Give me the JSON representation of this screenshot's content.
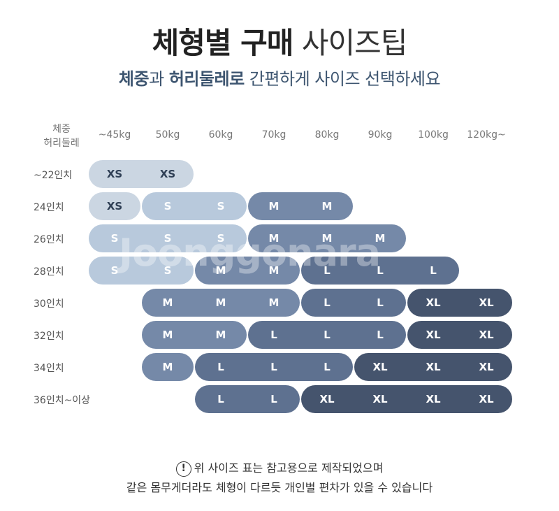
{
  "title": {
    "bold": "체형별 구매",
    "light": " 사이즈팁"
  },
  "subtitle": {
    "p1": "체중",
    "p2": "과 ",
    "p3": "허리둘레로",
    "p4": " 간편하게 사이즈 선택하세요"
  },
  "corner": {
    "line1": "체중",
    "line2": "허리둘레"
  },
  "weights": [
    "~45kg",
    "50kg",
    "60kg",
    "70kg",
    "80kg",
    "90kg",
    "100kg",
    "120kg~"
  ],
  "waists": [
    "~22인치",
    "24인치",
    "26인치",
    "28인치",
    "30인치",
    "32인치",
    "34인치",
    "36인치~이상"
  ],
  "colors": {
    "XS": "#cbd6e2",
    "S": "#b8c9dc",
    "M": "#7589a8",
    "L": "#5e7190",
    "XL": "#45546d"
  },
  "rows": [
    {
      "pills": [
        {
          "size": "XS",
          "cells": [
            "XS",
            "XS"
          ],
          "start": 0
        }
      ]
    },
    {
      "pills": [
        {
          "size": "XS",
          "cells": [
            "XS"
          ],
          "start": 0
        },
        {
          "size": "S",
          "cells": [
            "S",
            "S"
          ],
          "start": 1
        },
        {
          "size": "M",
          "cells": [
            "M",
            "M"
          ],
          "start": 3
        }
      ]
    },
    {
      "pills": [
        {
          "size": "S",
          "cells": [
            "S",
            "S",
            "S"
          ],
          "start": 0
        },
        {
          "size": "M",
          "cells": [
            "M",
            "M",
            "M"
          ],
          "start": 3
        }
      ]
    },
    {
      "pills": [
        {
          "size": "S",
          "cells": [
            "S",
            "S"
          ],
          "start": 0
        },
        {
          "size": "M",
          "cells": [
            "M",
            "M"
          ],
          "start": 2
        },
        {
          "size": "L",
          "cells": [
            "L",
            "L",
            "L"
          ],
          "start": 4
        }
      ]
    },
    {
      "pills": [
        {
          "size": "M",
          "cells": [
            "M",
            "M",
            "M"
          ],
          "start": 1
        },
        {
          "size": "L",
          "cells": [
            "L",
            "L"
          ],
          "start": 4
        },
        {
          "size": "XL",
          "cells": [
            "XL",
            "XL"
          ],
          "start": 6
        }
      ]
    },
    {
      "pills": [
        {
          "size": "M",
          "cells": [
            "M",
            "M"
          ],
          "start": 1
        },
        {
          "size": "L",
          "cells": [
            "L",
            "L",
            "L"
          ],
          "start": 3
        },
        {
          "size": "XL",
          "cells": [
            "XL",
            "XL"
          ],
          "start": 6
        }
      ]
    },
    {
      "pills": [
        {
          "size": "M",
          "cells": [
            "M"
          ],
          "start": 1
        },
        {
          "size": "L",
          "cells": [
            "L",
            "L",
            "L"
          ],
          "start": 2
        },
        {
          "size": "XL",
          "cells": [
            "XL",
            "XL",
            "XL"
          ],
          "start": 5
        }
      ]
    },
    {
      "pills": [
        {
          "size": "L",
          "cells": [
            "L",
            "L"
          ],
          "start": 2
        },
        {
          "size": "XL",
          "cells": [
            "XL",
            "XL",
            "XL",
            "XL"
          ],
          "start": 4
        }
      ]
    }
  ],
  "note": {
    "icon": "warning-circle-icon",
    "mark": "!",
    "line1": "위 사이즈 표는 참고용으로 제작되었으며",
    "line2": "같은 몸무게더라도 체형이 다르듯 개인별 편차가 있을 수 있습니다"
  },
  "watermark": "Joonggonara"
}
